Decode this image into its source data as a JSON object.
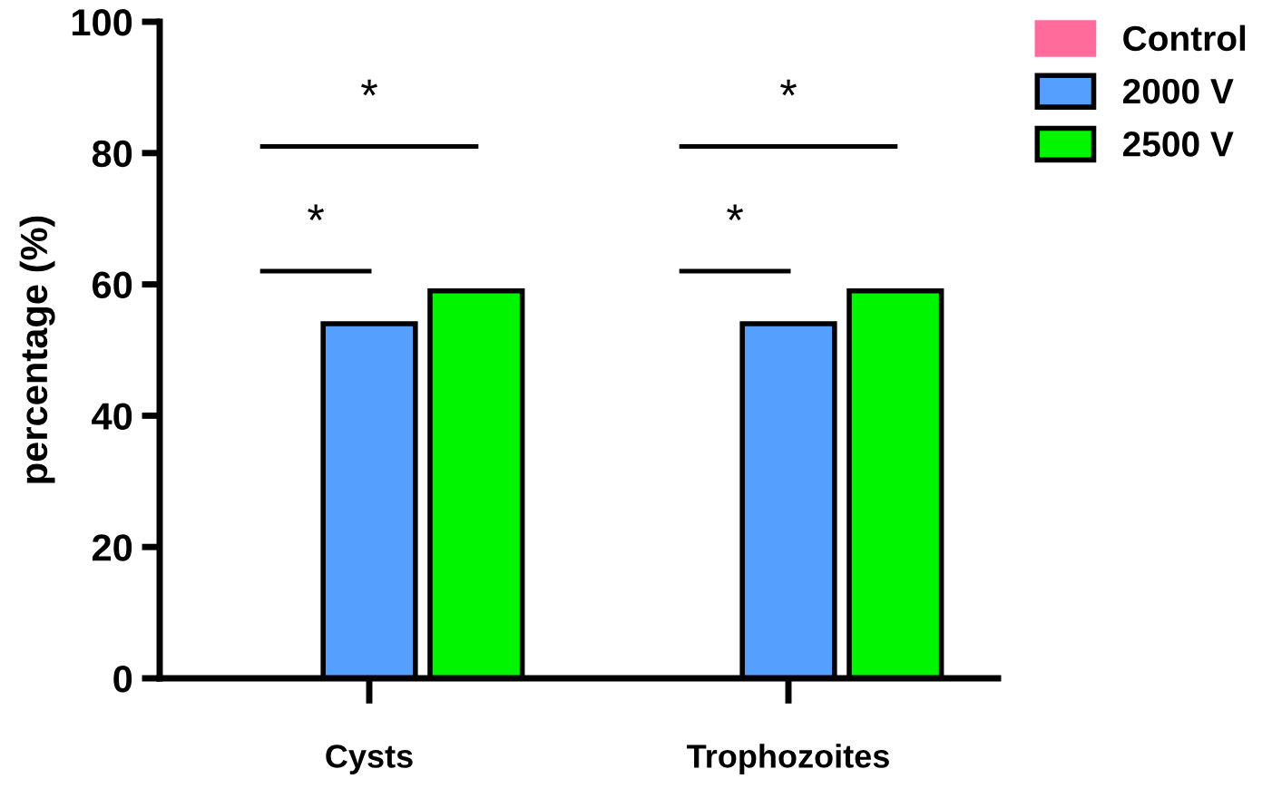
{
  "chart_data": {
    "type": "bar",
    "ylabel": "percentage (%)",
    "categories": [
      "Cysts",
      "Trophozoites"
    ],
    "series": [
      {
        "name": "Control",
        "color": "#ff6b9a",
        "values": [
          0,
          0
        ]
      },
      {
        "name": "2000 V",
        "color": "#559ffe",
        "values": [
          54,
          54
        ]
      },
      {
        "name": "2500 V",
        "color": "#00f500",
        "values": [
          59,
          59
        ]
      }
    ],
    "ylim": [
      0,
      100
    ],
    "yticks": [
      0,
      20,
      40,
      60,
      80,
      100
    ],
    "grid": false,
    "legend": "top right",
    "annotations": [
      "*",
      "*",
      "*",
      "*"
    ]
  }
}
